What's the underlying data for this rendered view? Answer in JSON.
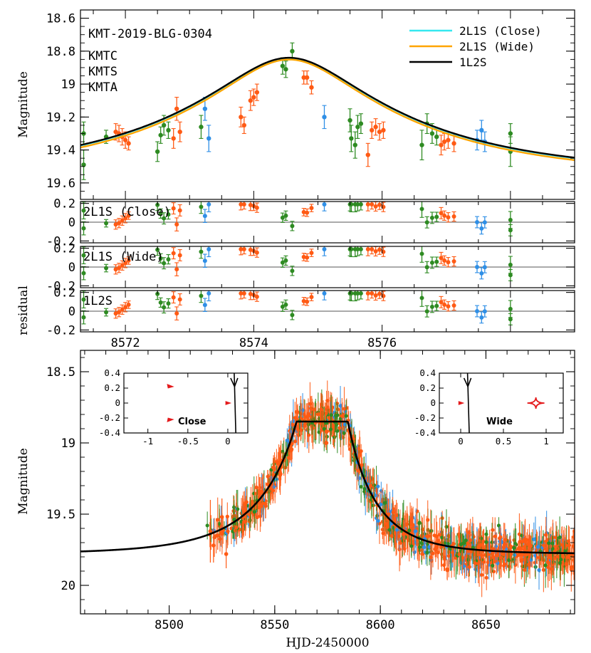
{
  "chart_data": [
    {
      "type": "scatter",
      "id": "top",
      "title": "KMT-2019-BLG-0304",
      "ylabel": "Magnitude",
      "xlim": [
        8571.3,
        8579.0
      ],
      "ylim": [
        19.7,
        18.55
      ],
      "y_inverted": true,
      "yticks": [
        18.6,
        18.8,
        19,
        19.2,
        19.4,
        19.6
      ],
      "ytick_labels": [
        "18.6",
        "18.8",
        "19",
        "19.2",
        "19.4",
        "19.6"
      ],
      "observatories": [
        {
          "name": "KMTC",
          "color": "#ff5a14"
        },
        {
          "name": "KMTS",
          "color": "#2e8b22"
        },
        {
          "name": "KMTA",
          "color": "#2f8fe6"
        }
      ],
      "models": [
        {
          "name": "2L1S (Close)",
          "color": "#35e8f0"
        },
        {
          "name": "2L1S (Wide)",
          "color": "#ffa500"
        },
        {
          "name": "1L2S",
          "color": "#000000"
        }
      ],
      "points": [
        {
          "x": 8571.35,
          "y": 19.3,
          "err": 0.07,
          "obs": "KMTS"
        },
        {
          "x": 8571.35,
          "y": 19.49,
          "err": 0.09,
          "obs": "KMTS"
        },
        {
          "x": 8571.7,
          "y": 19.32,
          "err": 0.04,
          "obs": "KMTS"
        },
        {
          "x": 8571.85,
          "y": 19.29,
          "err": 0.05,
          "obs": "KMTC"
        },
        {
          "x": 8571.9,
          "y": 19.3,
          "err": 0.05,
          "obs": "KMTC"
        },
        {
          "x": 8571.95,
          "y": 19.32,
          "err": 0.05,
          "obs": "KMTC"
        },
        {
          "x": 8572.0,
          "y": 19.34,
          "err": 0.05,
          "obs": "KMTC"
        },
        {
          "x": 8572.05,
          "y": 19.36,
          "err": 0.04,
          "obs": "KMTC"
        },
        {
          "x": 8572.5,
          "y": 19.41,
          "err": 0.06,
          "obs": "KMTS"
        },
        {
          "x": 8572.55,
          "y": 19.31,
          "err": 0.05,
          "obs": "KMTS"
        },
        {
          "x": 8572.6,
          "y": 19.25,
          "err": 0.06,
          "obs": "KMTS"
        },
        {
          "x": 8572.67,
          "y": 19.28,
          "err": 0.05,
          "obs": "KMTS"
        },
        {
          "x": 8572.75,
          "y": 19.33,
          "err": 0.06,
          "obs": "KMTC"
        },
        {
          "x": 8572.8,
          "y": 19.15,
          "err": 0.07,
          "obs": "KMTC"
        },
        {
          "x": 8572.85,
          "y": 19.29,
          "err": 0.06,
          "obs": "KMTC"
        },
        {
          "x": 8573.18,
          "y": 19.26,
          "err": 0.07,
          "obs": "KMTS"
        },
        {
          "x": 8573.24,
          "y": 19.15,
          "err": 0.07,
          "obs": "KMTA"
        },
        {
          "x": 8573.3,
          "y": 19.33,
          "err": 0.08,
          "obs": "KMTA"
        },
        {
          "x": 8573.8,
          "y": 19.2,
          "err": 0.06,
          "obs": "KMTC"
        },
        {
          "x": 8573.85,
          "y": 19.25,
          "err": 0.05,
          "obs": "KMTC"
        },
        {
          "x": 8573.95,
          "y": 19.1,
          "err": 0.06,
          "obs": "KMTC"
        },
        {
          "x": 8574.0,
          "y": 19.08,
          "err": 0.05,
          "obs": "KMTC"
        },
        {
          "x": 8574.05,
          "y": 19.05,
          "err": 0.05,
          "obs": "KMTC"
        },
        {
          "x": 8574.45,
          "y": 18.89,
          "err": 0.05,
          "obs": "KMTS"
        },
        {
          "x": 8574.5,
          "y": 18.91,
          "err": 0.05,
          "obs": "KMTS"
        },
        {
          "x": 8574.6,
          "y": 18.8,
          "err": 0.05,
          "obs": "KMTS"
        },
        {
          "x": 8574.78,
          "y": 18.96,
          "err": 0.04,
          "obs": "KMTC"
        },
        {
          "x": 8574.83,
          "y": 18.96,
          "err": 0.04,
          "obs": "KMTC"
        },
        {
          "x": 8574.9,
          "y": 19.02,
          "err": 0.04,
          "obs": "KMTC"
        },
        {
          "x": 8575.1,
          "y": 19.2,
          "err": 0.07,
          "obs": "KMTA"
        },
        {
          "x": 8575.5,
          "y": 19.22,
          "err": 0.07,
          "obs": "KMTS"
        },
        {
          "x": 8575.52,
          "y": 19.33,
          "err": 0.08,
          "obs": "KMTS"
        },
        {
          "x": 8575.58,
          "y": 19.37,
          "err": 0.08,
          "obs": "KMTS"
        },
        {
          "x": 8575.62,
          "y": 19.26,
          "err": 0.07,
          "obs": "KMTS"
        },
        {
          "x": 8575.67,
          "y": 19.24,
          "err": 0.06,
          "obs": "KMTS"
        },
        {
          "x": 8575.78,
          "y": 19.43,
          "err": 0.07,
          "obs": "KMTC"
        },
        {
          "x": 8575.84,
          "y": 19.28,
          "err": 0.05,
          "obs": "KMTC"
        },
        {
          "x": 8575.9,
          "y": 19.26,
          "err": 0.05,
          "obs": "KMTC"
        },
        {
          "x": 8575.96,
          "y": 19.29,
          "err": 0.05,
          "obs": "KMTC"
        },
        {
          "x": 8576.02,
          "y": 19.28,
          "err": 0.05,
          "obs": "KMTC"
        },
        {
          "x": 8576.62,
          "y": 19.37,
          "err": 0.09,
          "obs": "KMTS"
        },
        {
          "x": 8576.7,
          "y": 19.24,
          "err": 0.06,
          "obs": "KMTS"
        },
        {
          "x": 8576.78,
          "y": 19.3,
          "err": 0.06,
          "obs": "KMTS"
        },
        {
          "x": 8576.85,
          "y": 19.32,
          "err": 0.05,
          "obs": "KMTS"
        },
        {
          "x": 8576.92,
          "y": 19.37,
          "err": 0.06,
          "obs": "KMTC"
        },
        {
          "x": 8576.97,
          "y": 19.35,
          "err": 0.05,
          "obs": "KMTC"
        },
        {
          "x": 8577.03,
          "y": 19.34,
          "err": 0.05,
          "obs": "KMTC"
        },
        {
          "x": 8577.12,
          "y": 19.36,
          "err": 0.05,
          "obs": "KMTC"
        },
        {
          "x": 8577.48,
          "y": 19.34,
          "err": 0.06,
          "obs": "KMTA"
        },
        {
          "x": 8577.55,
          "y": 19.28,
          "err": 0.06,
          "obs": "KMTA"
        },
        {
          "x": 8577.6,
          "y": 19.35,
          "err": 0.06,
          "obs": "KMTA"
        },
        {
          "x": 8578.0,
          "y": 19.41,
          "err": 0.09,
          "obs": "KMTS"
        },
        {
          "x": 8578.0,
          "y": 19.3,
          "err": 0.06,
          "obs": "KMTS"
        }
      ]
    },
    {
      "type": "scatter",
      "id": "residuals",
      "ylabel": "residual",
      "xlim": [
        8571.3,
        8579.0
      ],
      "xticks": [
        8572,
        8574,
        8576
      ],
      "xtick_labels": [
        "8572",
        "8574",
        "8576"
      ],
      "ylim": [
        -0.22,
        0.22
      ],
      "yticks": [
        -0.2,
        0,
        0.2
      ],
      "ytick_labels": [
        "-0.2",
        "0",
        "0.2"
      ],
      "panels": [
        "2L1S (Close)",
        "2L1S (Wide)",
        "1L2S"
      ]
    },
    {
      "type": "scatter",
      "id": "bottom",
      "ylabel": "Magnitude",
      "xlabel": "HJD-2450000",
      "xlim": [
        8458,
        8692
      ],
      "xticks": [
        8500,
        8550,
        8600,
        8650
      ],
      "xtick_labels": [
        "8500",
        "8550",
        "8600",
        "8650"
      ],
      "ylim": [
        20.2,
        18.35
      ],
      "y_inverted": true,
      "yticks": [
        18.5,
        19,
        19.5,
        20
      ],
      "ytick_labels": [
        "18.5",
        "19",
        "19.5",
        "20"
      ],
      "peak_time": 8574.5,
      "baseline_mag": 19.78,
      "peak_mag": 18.85,
      "insets": [
        {
          "label": "Close",
          "xlim": [
            -1.3,
            0.25
          ],
          "ylim": [
            -0.4,
            0.4
          ],
          "xticks": [
            -1,
            -0.5,
            0
          ],
          "xtick_labels": [
            "-1",
            "-0.5",
            "0"
          ],
          "yticks": [
            -0.4,
            -0.2,
            0,
            0.2,
            0.4
          ],
          "ytick_labels": [
            "-0.4",
            "-0.2",
            "0",
            "0.2",
            "0.4"
          ]
        },
        {
          "label": "Wide",
          "xlim": [
            -0.25,
            1.2
          ],
          "ylim": [
            -0.4,
            0.4
          ],
          "xticks": [
            0,
            0.5,
            1
          ],
          "xtick_labels": [
            "0",
            "0.5",
            "1"
          ],
          "yticks": [
            -0.4,
            -0.2,
            0,
            0.2,
            0.4
          ],
          "ytick_labels": [
            "-0.4",
            "-0.2",
            "0",
            "0.2",
            "0.4"
          ]
        }
      ]
    }
  ]
}
